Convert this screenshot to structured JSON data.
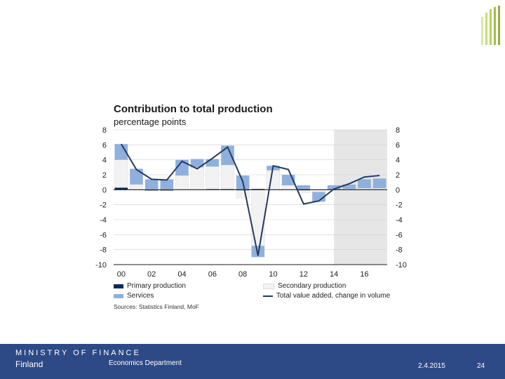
{
  "chart_data": {
    "type": "bar",
    "stacked": true,
    "title": "Contribution to total production",
    "subtitle": "percentage points",
    "years": [
      "00",
      "01",
      "02",
      "03",
      "04",
      "05",
      "06",
      "07",
      "08",
      "09",
      "10",
      "11",
      "12",
      "13",
      "14",
      "15",
      "16",
      "17"
    ],
    "x_tick_labels": [
      "00",
      "02",
      "04",
      "06",
      "08",
      "10",
      "12",
      "14",
      "16"
    ],
    "x_tick_years": [
      "00",
      "02",
      "04",
      "06",
      "08",
      "10",
      "12",
      "14",
      "16"
    ],
    "ylim": [
      -10,
      8
    ],
    "y_ticks": [
      8,
      6,
      4,
      2,
      0,
      -2,
      -4,
      -6,
      -8,
      -10
    ],
    "forecast_start": "14",
    "series": [
      {
        "name": "Primary production",
        "color": "#0b2a5b",
        "values": [
          0.3,
          0.0,
          -0.1,
          -0.1,
          0.0,
          0.0,
          0.1,
          0.1,
          -0.1,
          0.1,
          0.0,
          0.0,
          -0.1,
          0.0,
          0.0,
          0.0,
          0.0,
          0.0
        ]
      },
      {
        "name": "Secondary production",
        "color": "#f2f2f2",
        "values": [
          3.7,
          0.7,
          0.1,
          0.1,
          1.9,
          3.0,
          3.0,
          3.2,
          -1.0,
          -7.5,
          2.6,
          0.6,
          -0.3,
          -0.3,
          0.0,
          0.1,
          0.2,
          0.2
        ]
      },
      {
        "name": "Services",
        "color": "#8fb0dd",
        "values": [
          2.1,
          2.1,
          1.3,
          1.3,
          2.1,
          1.1,
          1.0,
          2.6,
          1.9,
          -1.5,
          0.6,
          1.4,
          0.6,
          -1.3,
          0.6,
          0.6,
          1.2,
          1.3
        ]
      }
    ],
    "line": {
      "name": "Total value added, change in volume",
      "color": "#243a5e",
      "values": [
        6.1,
        2.7,
        1.4,
        1.3,
        3.8,
        2.8,
        4.2,
        5.7,
        1.1,
        -8.8,
        3.2,
        2.7,
        -1.9,
        -1.5,
        0.1,
        0.8,
        1.7,
        1.9
      ]
    },
    "legend": [
      {
        "label": "Primary production",
        "kind": "bar",
        "color": "#0b2a5b"
      },
      {
        "label": "Secondary production",
        "kind": "bar",
        "color": "#f2f2f2"
      },
      {
        "label": "Services",
        "kind": "bar",
        "color": "#8fb0dd"
      },
      {
        "label": "Total value added, change in volume",
        "kind": "line",
        "color": "#243a5e"
      }
    ],
    "source": "Sources: Statistics Finland, MoF"
  },
  "footer": {
    "org_line1": "MINISTRY OF FINANCE",
    "org_line2": "Finland",
    "department": "Economics Department",
    "date": "2.4.2015",
    "page": "24"
  },
  "colors": {
    "footer_bg": "#2e4a86",
    "forecast_shade": "#e6e6e6"
  }
}
